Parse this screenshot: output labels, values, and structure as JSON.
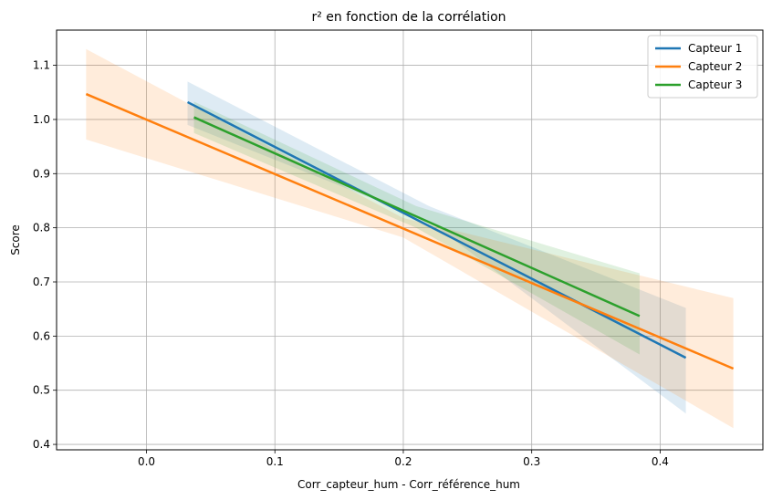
{
  "chart_data": {
    "type": "line",
    "title": "r² en fonction de la corrélation",
    "xlabel": "Corr_capteur_hum - Corr_référence_hum",
    "ylabel": "Score",
    "xlim": [
      -0.07,
      0.48
    ],
    "ylim": [
      0.39,
      1.165
    ],
    "x_ticks": [
      0.0,
      0.1,
      0.2,
      0.3,
      0.4
    ],
    "x_tick_labels": [
      "0.0",
      "0.1",
      "0.2",
      "0.3",
      "0.4"
    ],
    "y_ticks": [
      0.4,
      0.5,
      0.6,
      0.7,
      0.8,
      0.9,
      1.0,
      1.1
    ],
    "y_tick_labels": [
      "0.4",
      "0.5",
      "0.6",
      "0.7",
      "0.8",
      "0.9",
      "1.0",
      "1.1"
    ],
    "grid": true,
    "legend_position": "top-right",
    "series": [
      {
        "name": "Capteur 1",
        "color": "#1f77b4",
        "x": [
          0.032,
          0.42
        ],
        "y": [
          1.032,
          0.56
        ],
        "band_x": [
          0.032,
          0.22,
          0.42
        ],
        "band_upper": [
          1.07,
          0.84,
          0.652
        ],
        "band_lower": [
          0.99,
          0.812,
          0.457
        ]
      },
      {
        "name": "Capteur 2",
        "color": "#ff7f0e",
        "x": [
          -0.047,
          0.457
        ],
        "y": [
          1.047,
          0.54
        ],
        "band_x": [
          -0.047,
          0.2,
          0.457
        ],
        "band_upper": [
          1.13,
          0.818,
          0.67
        ],
        "band_lower": [
          0.963,
          0.782,
          0.43
        ]
      },
      {
        "name": "Capteur 3",
        "color": "#2ca02c",
        "x": [
          0.037,
          0.384
        ],
        "y": [
          1.004,
          0.637
        ],
        "band_x": [
          0.037,
          0.21,
          0.384
        ],
        "band_upper": [
          1.033,
          0.84,
          0.716
        ],
        "band_lower": [
          0.975,
          0.8,
          0.566
        ]
      }
    ]
  }
}
